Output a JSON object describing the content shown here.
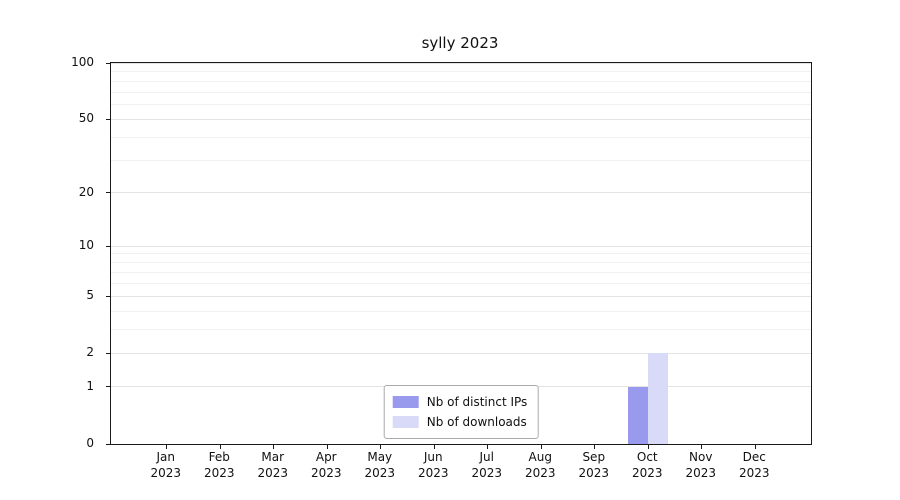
{
  "chart_data": {
    "type": "bar",
    "title": "sylly 2023",
    "categories": [
      "Jan 2023",
      "Feb 2023",
      "Mar 2023",
      "Apr 2023",
      "May 2023",
      "Jun 2023",
      "Jul 2023",
      "Aug 2023",
      "Sep 2023",
      "Oct 2023",
      "Nov 2023",
      "Dec 2023"
    ],
    "series": [
      {
        "name": "Nb of distinct IPs",
        "color": "#9999ee",
        "values": [
          0,
          0,
          0,
          0,
          0,
          0,
          0,
          0,
          0,
          1,
          0,
          0
        ]
      },
      {
        "name": "Nb of downloads",
        "color": "#d9d9f8",
        "values": [
          0,
          0,
          0,
          0,
          0,
          0,
          0,
          0,
          0,
          2,
          0,
          0
        ]
      }
    ],
    "yticks": [
      0,
      1,
      2,
      5,
      10,
      20,
      50,
      100
    ],
    "ylim": [
      0,
      100
    ],
    "yscale": "log1p",
    "xlabel": "",
    "ylabel": "",
    "grid": {
      "major": [
        1,
        2,
        5,
        10,
        20,
        50,
        100
      ],
      "minor": [
        3,
        4,
        6,
        7,
        8,
        9,
        30,
        40,
        60,
        70,
        80,
        90
      ]
    },
    "legend": {
      "position": "lower center"
    }
  }
}
